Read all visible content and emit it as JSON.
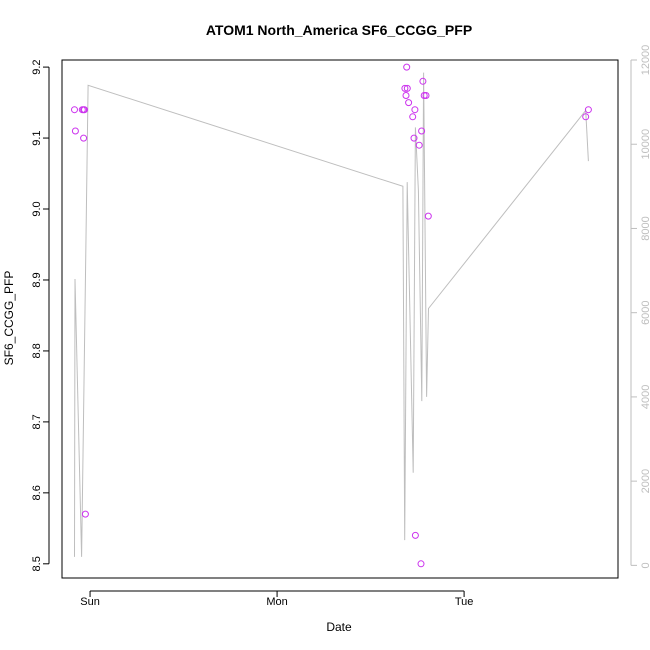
{
  "chart_data": {
    "type": "scatter",
    "title": "ATOM1 North_America SF6_CCGG_PFP",
    "xlabel": "Date",
    "ylabel": "SF6_CCGG_PFP",
    "x_ticks": [
      "Sun",
      "Mon",
      "Tue"
    ],
    "x_range": [
      "Sat 20:24",
      "Tue 19:45"
    ],
    "y_ticks": [
      8.5,
      8.6,
      8.7,
      8.8,
      8.9,
      9.0,
      9.1,
      9.2
    ],
    "ylim": [
      8.48,
      9.21
    ],
    "y2_ticks": [
      0,
      2000,
      4000,
      6000,
      8000,
      10000,
      12000
    ],
    "y2lim": [
      -300,
      12000
    ],
    "grid": false,
    "legend": "none",
    "colors": {
      "points": "#cc33ee",
      "line": "#bebebe",
      "box": "#000000",
      "axis2": "#bebebe"
    },
    "series": [
      {
        "axis": "left",
        "marker": "open-circle",
        "points": [
          {
            "x": "Sat 22:00",
            "y": 9.14
          },
          {
            "x": "Sat 22:07",
            "y": 9.11
          },
          {
            "x": "Sat 23:00",
            "y": 9.14
          },
          {
            "x": "Sat 23:10",
            "y": 9.14
          },
          {
            "x": "Sat 23:17",
            "y": 9.14
          },
          {
            "x": "Sat 23:10",
            "y": 9.1
          },
          {
            "x": "Sat 23:24",
            "y": 8.57
          },
          {
            "x": "Mon 16:24",
            "y": 9.17
          },
          {
            "x": "Mon 16:33",
            "y": 9.16
          },
          {
            "x": "Mon 16:38",
            "y": 9.2
          },
          {
            "x": "Mon 16:43",
            "y": 9.17
          },
          {
            "x": "Mon 16:53",
            "y": 9.15
          },
          {
            "x": "Mon 17:24",
            "y": 9.13
          },
          {
            "x": "Mon 17:34",
            "y": 9.1
          },
          {
            "x": "Mon 17:41",
            "y": 9.14
          },
          {
            "x": "Mon 17:45",
            "y": 8.54
          },
          {
            "x": "Mon 18:14",
            "y": 9.09
          },
          {
            "x": "Mon 18:28",
            "y": 8.5
          },
          {
            "x": "Mon 18:33",
            "y": 9.11
          },
          {
            "x": "Mon 18:43",
            "y": 9.18
          },
          {
            "x": "Mon 18:53",
            "y": 9.16
          },
          {
            "x": "Mon 19:07",
            "y": 9.16
          },
          {
            "x": "Mon 19:24",
            "y": 8.99
          },
          {
            "x": "Tue 15:36",
            "y": 9.13
          },
          {
            "x": "Tue 15:57",
            "y": 9.14
          }
        ]
      },
      {
        "axis": "right",
        "marker": "line",
        "points": [
          {
            "x": "Sat 22:00",
            "y": 200
          },
          {
            "x": "Sat 22:04",
            "y": 6800
          },
          {
            "x": "Sat 22:55",
            "y": 200
          },
          {
            "x": "Sat 23:45",
            "y": 11400
          },
          {
            "x": "Mon 16:09",
            "y": 9000
          },
          {
            "x": "Mon 16:23",
            "y": 600
          },
          {
            "x": "Mon 16:42",
            "y": 9100
          },
          {
            "x": "Mon 17:28",
            "y": 2200
          },
          {
            "x": "Mon 17:45",
            "y": 10400
          },
          {
            "x": "Mon 18:08",
            "y": 8900
          },
          {
            "x": "Mon 18:34",
            "y": 3900
          },
          {
            "x": "Mon 18:48",
            "y": 11700
          },
          {
            "x": "Mon 19:11",
            "y": 4000
          },
          {
            "x": "Mon 19:26",
            "y": 6100
          },
          {
            "x": "Tue 15:36",
            "y": 10800
          },
          {
            "x": "Tue 15:57",
            "y": 9600
          }
        ]
      }
    ]
  }
}
